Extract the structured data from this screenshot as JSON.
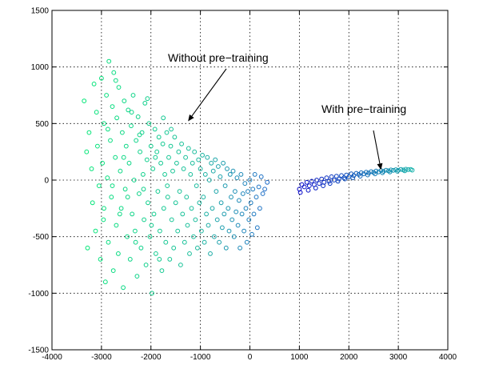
{
  "chart_data": {
    "type": "scatter",
    "title": "",
    "xlabel": "",
    "ylabel": "",
    "xlim": [
      -4000,
      4000
    ],
    "ylim": [
      -1500,
      1500
    ],
    "xticks": [
      -4000,
      -3000,
      -2000,
      -1000,
      0,
      1000,
      2000,
      3000,
      4000
    ],
    "yticks": [
      -1500,
      -1000,
      -500,
      0,
      500,
      1000,
      1500
    ],
    "grid": true,
    "color_gradient": [
      "#00e676",
      "#1abc9c",
      "#1f3fe0",
      "#0000c8"
    ],
    "annotations": [
      {
        "text": "Without pre−training",
        "target": [
          -1250,
          520
        ]
      },
      {
        "text": "With pre−training",
        "target": [
          2650,
          90
        ]
      }
    ],
    "series": [
      {
        "cluster": "without",
        "points": [
          [
            -3350,
            700
          ],
          [
            -3300,
            250
          ],
          [
            -3280,
            -600
          ],
          [
            -3250,
            420
          ],
          [
            -3200,
            100
          ],
          [
            -3180,
            -200
          ],
          [
            -3150,
            850
          ],
          [
            -3120,
            -450
          ],
          [
            -3100,
            600
          ],
          [
            -3080,
            300
          ],
          [
            -3050,
            -50
          ],
          [
            -3020,
            -700
          ],
          [
            -3000,
            900
          ],
          [
            -2980,
            150
          ],
          [
            -2960,
            -350
          ],
          [
            -2950,
            500
          ],
          [
            -2920,
            -900
          ],
          [
            -2900,
            750
          ],
          [
            -2880,
            20
          ],
          [
            -2860,
            -550
          ],
          [
            -2850,
            1050
          ],
          [
            -2820,
            350
          ],
          [
            -2800,
            -150
          ],
          [
            -2780,
            650
          ],
          [
            -2760,
            -800
          ],
          [
            -2750,
            950
          ],
          [
            -2720,
            200
          ],
          [
            -2700,
            -400
          ],
          [
            -2690,
            550
          ],
          [
            -2660,
            -650
          ],
          [
            -2650,
            820
          ],
          [
            -2620,
            80
          ],
          [
            -2600,
            -250
          ],
          [
            -2580,
            420
          ],
          [
            -2560,
            -950
          ],
          [
            -2540,
            700
          ],
          [
            -2520,
            -80
          ],
          [
            -2500,
            300
          ],
          [
            -2480,
            -500
          ],
          [
            -2460,
            620
          ],
          [
            -2440,
            150
          ],
          [
            -2420,
            -700
          ],
          [
            -2400,
            480
          ],
          [
            -2380,
            -300
          ],
          [
            -2360,
            750
          ],
          [
            -2340,
            0
          ],
          [
            -2320,
            -450
          ],
          [
            -2300,
            350
          ],
          [
            -2280,
            -850
          ],
          [
            -2260,
            560
          ],
          [
            -2240,
            -120
          ],
          [
            -2220,
            250
          ],
          [
            -2200,
            -600
          ],
          [
            -2180,
            420
          ],
          [
            -2160,
            50
          ],
          [
            -2140,
            -350
          ],
          [
            -2120,
            680
          ],
          [
            -2100,
            -750
          ],
          [
            -2080,
            180
          ],
          [
            -2060,
            -200
          ],
          [
            -2040,
            500
          ],
          [
            -2020,
            -500
          ],
          [
            -2000,
            300
          ],
          [
            -1980,
            -1000
          ],
          [
            -1960,
            100
          ],
          [
            -1940,
            -300
          ],
          [
            -1920,
            450
          ],
          [
            -1900,
            -650
          ],
          [
            -1880,
            250
          ],
          [
            -1860,
            -100
          ],
          [
            -1840,
            380
          ],
          [
            -1820,
            -450
          ],
          [
            -1800,
            150
          ],
          [
            -1780,
            -800
          ],
          [
            -1760,
            320
          ],
          [
            -1740,
            -250
          ],
          [
            -1720,
            50
          ],
          [
            -1700,
            -550
          ],
          [
            -1680,
            420
          ],
          [
            -1660,
            -150
          ],
          [
            -1640,
            200
          ],
          [
            -1620,
            -700
          ],
          [
            -1600,
            300
          ],
          [
            -1580,
            -350
          ],
          [
            -1560,
            80
          ],
          [
            -1540,
            -600
          ],
          [
            -1520,
            380
          ],
          [
            -1500,
            -200
          ],
          [
            -1480,
            150
          ],
          [
            -1460,
            -450
          ],
          [
            -1440,
            250
          ],
          [
            -1420,
            -100
          ],
          [
            -1400,
            -750
          ],
          [
            -1380,
            320
          ],
          [
            -1360,
            -300
          ],
          [
            -1340,
            100
          ],
          [
            -1320,
            -550
          ],
          [
            -1300,
            200
          ],
          [
            -1280,
            -150
          ],
          [
            -1260,
            -400
          ],
          [
            -1240,
            280
          ],
          [
            -1220,
            -650
          ],
          [
            -1200,
            50
          ],
          [
            -1180,
            -250
          ],
          [
            -1160,
            150
          ],
          [
            -1140,
            -500
          ],
          [
            -1120,
            250
          ],
          [
            -1100,
            -350
          ],
          [
            -1080,
            -50
          ],
          [
            -1060,
            -600
          ],
          [
            -1040,
            180
          ],
          [
            -1020,
            -200
          ],
          [
            -1000,
            100
          ],
          [
            -980,
            -450
          ],
          [
            -960,
            220
          ],
          [
            -940,
            -150
          ],
          [
            -920,
            -550
          ],
          [
            -900,
            50
          ],
          [
            -880,
            -300
          ],
          [
            -860,
            200
          ],
          [
            -840,
            -400
          ],
          [
            -820,
            0
          ],
          [
            -800,
            -650
          ],
          [
            -780,
            150
          ],
          [
            -760,
            -250
          ],
          [
            -740,
            80
          ],
          [
            -720,
            -500
          ],
          [
            -700,
            180
          ],
          [
            -680,
            -100
          ],
          [
            -660,
            -350
          ],
          [
            -640,
            120
          ],
          [
            -620,
            -550
          ],
          [
            -600,
            30
          ],
          [
            -580,
            -200
          ],
          [
            -560,
            -420
          ],
          [
            -540,
            150
          ],
          [
            -520,
            -300
          ],
          [
            -500,
            -50
          ],
          [
            -480,
            -600
          ],
          [
            -460,
            100
          ],
          [
            -440,
            -250
          ],
          [
            -420,
            -450
          ],
          [
            -400,
            50
          ],
          [
            -380,
            -150
          ],
          [
            -360,
            -350
          ],
          [
            -340,
            80
          ],
          [
            -320,
            -500
          ],
          [
            -300,
            -100
          ],
          [
            -280,
            -280
          ],
          [
            -260,
            20
          ],
          [
            -240,
            -400
          ],
          [
            -220,
            -180
          ],
          [
            -200,
            -600
          ],
          [
            -180,
            50
          ],
          [
            -160,
            -300
          ],
          [
            -140,
            -120
          ],
          [
            -120,
            -450
          ],
          [
            -100,
            -30
          ],
          [
            -80,
            -250
          ],
          [
            -60,
            -550
          ],
          [
            -40,
            -100
          ],
          [
            -20,
            -350
          ],
          [
            0,
            0
          ],
          [
            20,
            -200
          ],
          [
            40,
            -480
          ],
          [
            60,
            -80
          ],
          [
            80,
            -300
          ],
          [
            100,
            50
          ],
          [
            130,
            -150
          ],
          [
            150,
            -420
          ],
          [
            180,
            -60
          ],
          [
            200,
            -250
          ],
          [
            230,
            30
          ],
          [
            260,
            -120
          ],
          [
            300,
            -80
          ],
          [
            350,
            -20
          ],
          [
            -2950,
            -250
          ],
          [
            -2870,
            450
          ],
          [
            -2780,
            -50
          ],
          [
            -2710,
            880
          ],
          [
            -2630,
            -300
          ],
          [
            -2550,
            200
          ],
          [
            -2470,
            -150
          ],
          [
            -2390,
            600
          ],
          [
            -2310,
            -550
          ],
          [
            -2230,
            400
          ],
          [
            -2150,
            -80
          ],
          [
            -2070,
            720
          ],
          [
            -1990,
            -400
          ],
          [
            -1910,
            200
          ],
          [
            -1830,
            -700
          ],
          [
            -1750,
            550
          ],
          [
            -1670,
            -50
          ],
          [
            -1590,
            450
          ]
        ]
      },
      {
        "cluster": "with",
        "points": [
          [
            1000,
            -80
          ],
          [
            1050,
            -40
          ],
          [
            1100,
            -60
          ],
          [
            1150,
            -20
          ],
          [
            1200,
            -50
          ],
          [
            1250,
            -10
          ],
          [
            1300,
            -40
          ],
          [
            1350,
            0
          ],
          [
            1400,
            -30
          ],
          [
            1450,
            10
          ],
          [
            1500,
            -20
          ],
          [
            1550,
            20
          ],
          [
            1600,
            -10
          ],
          [
            1650,
            30
          ],
          [
            1700,
            0
          ],
          [
            1750,
            35
          ],
          [
            1800,
            10
          ],
          [
            1850,
            40
          ],
          [
            1900,
            20
          ],
          [
            1950,
            45
          ],
          [
            2000,
            30
          ],
          [
            2050,
            55
          ],
          [
            2100,
            40
          ],
          [
            2150,
            60
          ],
          [
            2200,
            50
          ],
          [
            2250,
            65
          ],
          [
            2300,
            55
          ],
          [
            2350,
            70
          ],
          [
            2400,
            62
          ],
          [
            2450,
            75
          ],
          [
            2500,
            68
          ],
          [
            2550,
            80
          ],
          [
            2600,
            72
          ],
          [
            2650,
            85
          ],
          [
            2700,
            78
          ],
          [
            2750,
            88
          ],
          [
            2800,
            82
          ],
          [
            2850,
            90
          ],
          [
            2900,
            86
          ],
          [
            2950,
            92
          ],
          [
            3000,
            88
          ],
          [
            3050,
            95
          ],
          [
            3100,
            90
          ],
          [
            3150,
            96
          ],
          [
            3200,
            93
          ],
          [
            3250,
            95
          ],
          [
            1020,
            -110
          ],
          [
            1180,
            -90
          ],
          [
            1330,
            -70
          ],
          [
            1480,
            -50
          ],
          [
            1620,
            -30
          ],
          [
            1780,
            -10
          ],
          [
            1920,
            10
          ],
          [
            2080,
            20
          ],
          [
            2230,
            35
          ],
          [
            2380,
            45
          ],
          [
            2530,
            55
          ],
          [
            2680,
            65
          ],
          [
            2830,
            72
          ],
          [
            2980,
            78
          ],
          [
            3130,
            82
          ],
          [
            3280,
            88
          ]
        ]
      }
    ]
  }
}
